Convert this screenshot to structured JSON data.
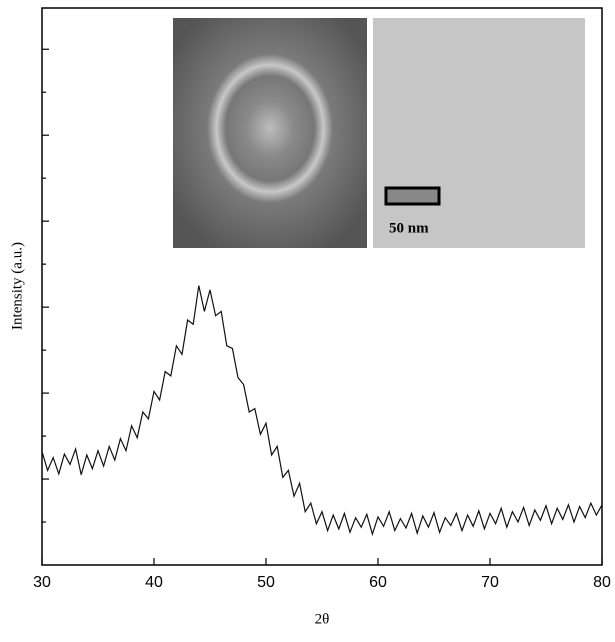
{
  "chart_data": {
    "type": "line",
    "xlabel": "2θ",
    "ylabel": "Intensity (a.u.)",
    "annotations": [
      "50 nm"
    ],
    "xlim": [
      30,
      80
    ],
    "xticks": [
      30,
      40,
      50,
      60,
      70,
      80
    ],
    "ylim": [
      0,
      6.48
    ],
    "yticks": [
      0.5,
      1,
      1.5,
      2,
      2.5,
      3,
      3.5,
      4,
      4.5,
      5,
      5.5,
      6
    ],
    "color": "#111111",
    "x": [
      30,
      30.5,
      31,
      31.5,
      32,
      32.5,
      33,
      33.5,
      34,
      34.5,
      35,
      35.5,
      36,
      36.5,
      37,
      37.5,
      38,
      38.5,
      39,
      39.5,
      40,
      40.5,
      41,
      41.5,
      42,
      42.5,
      43,
      43.5,
      44,
      44.5,
      45,
      45.5,
      46,
      46.5,
      47,
      47.5,
      48,
      48.5,
      49,
      49.5,
      50,
      50.5,
      51,
      51.5,
      52,
      52.5,
      53,
      53.5,
      54,
      54.5,
      55,
      55.5,
      56,
      56.5,
      57,
      57.5,
      58,
      58.5,
      59,
      59.5,
      60,
      60.5,
      61,
      61.5,
      62,
      62.5,
      63,
      63.5,
      64,
      64.5,
      65,
      65.5,
      66,
      66.5,
      67,
      67.5,
      68,
      68.5,
      69,
      69.5,
      70,
      70.5,
      71,
      71.5,
      72,
      72.5,
      73,
      73.5,
      74,
      74.5,
      75,
      75.5,
      76,
      76.5,
      77,
      77.5,
      78,
      78.5,
      79,
      79.5,
      80
    ],
    "values": [
      1.32,
      1.1,
      1.25,
      1.06,
      1.29,
      1.17,
      1.35,
      1.05,
      1.28,
      1.12,
      1.33,
      1.15,
      1.38,
      1.22,
      1.47,
      1.33,
      1.62,
      1.48,
      1.78,
      1.7,
      2.02,
      1.92,
      2.25,
      2.2,
      2.55,
      2.45,
      2.85,
      2.8,
      3.25,
      2.95,
      3.2,
      2.9,
      2.95,
      2.55,
      2.52,
      2.18,
      2.1,
      1.78,
      1.82,
      1.52,
      1.65,
      1.28,
      1.38,
      1.02,
      1.1,
      0.8,
      0.95,
      0.62,
      0.72,
      0.48,
      0.62,
      0.4,
      0.58,
      0.42,
      0.6,
      0.38,
      0.55,
      0.44,
      0.59,
      0.36,
      0.56,
      0.45,
      0.62,
      0.4,
      0.54,
      0.43,
      0.6,
      0.37,
      0.57,
      0.44,
      0.61,
      0.38,
      0.55,
      0.46,
      0.6,
      0.4,
      0.58,
      0.45,
      0.63,
      0.42,
      0.6,
      0.48,
      0.66,
      0.44,
      0.62,
      0.5,
      0.67,
      0.46,
      0.64,
      0.52,
      0.69,
      0.48,
      0.66,
      0.53,
      0.7,
      0.5,
      0.68,
      0.55,
      0.72,
      0.58,
      0.7
    ]
  }
}
